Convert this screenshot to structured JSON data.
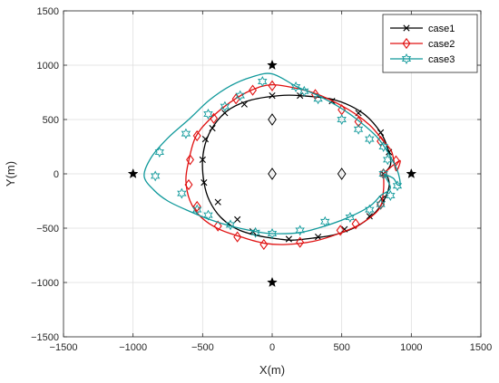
{
  "chart_data": {
    "type": "line",
    "xlabel": "X(m)",
    "ylabel": "Y(m)",
    "xlim": [
      -1500,
      1500
    ],
    "ylim": [
      -1500,
      1500
    ],
    "xticks": [
      -1500,
      -1000,
      -500,
      0,
      500,
      1000,
      1500
    ],
    "yticks": [
      -1500,
      -1000,
      -500,
      0,
      500,
      1000,
      1500
    ],
    "grid": true,
    "legend_position": "top-right",
    "landmarks": {
      "stars": [
        [
          0,
          1000
        ],
        [
          -1000,
          0
        ],
        [
          1000,
          0
        ],
        [
          0,
          -1000
        ]
      ],
      "diamonds": [
        [
          0,
          500
        ],
        [
          0,
          0
        ],
        [
          500,
          0
        ]
      ]
    },
    "series": [
      {
        "name": "case1",
        "color": "#000000",
        "marker": "x",
        "points": [
          [
            800,
            0
          ],
          [
            850,
            80
          ],
          [
            840,
            200
          ],
          [
            780,
            380
          ],
          [
            650,
            560
          ],
          [
            450,
            680
          ],
          [
            200,
            720
          ],
          [
            50,
            720
          ],
          [
            -150,
            680
          ],
          [
            -300,
            600
          ],
          [
            -400,
            480
          ],
          [
            -470,
            320
          ],
          [
            -500,
            130
          ],
          [
            -490,
            -80
          ],
          [
            -450,
            -250
          ],
          [
            -370,
            -400
          ],
          [
            -250,
            -510
          ],
          [
            -100,
            -570
          ],
          [
            50,
            -600
          ],
          [
            150,
            -610
          ],
          [
            300,
            -590
          ],
          [
            450,
            -560
          ],
          [
            600,
            -490
          ],
          [
            730,
            -370
          ],
          [
            800,
            -250
          ],
          [
            840,
            -120
          ],
          [
            830,
            -30
          ],
          [
            800,
            0
          ]
        ],
        "marker_points": [
          [
            840,
            200
          ],
          [
            780,
            380
          ],
          [
            620,
            560
          ],
          [
            430,
            670
          ],
          [
            200,
            720
          ],
          [
            0,
            720
          ],
          [
            -200,
            640
          ],
          [
            -340,
            560
          ],
          [
            -430,
            420
          ],
          [
            -480,
            320
          ],
          [
            -500,
            130
          ],
          [
            -490,
            -80
          ],
          [
            -390,
            -260
          ],
          [
            -250,
            -420
          ],
          [
            -140,
            -530
          ],
          [
            120,
            -600
          ],
          [
            330,
            -580
          ],
          [
            520,
            -510
          ],
          [
            700,
            -390
          ],
          [
            790,
            -230
          ],
          [
            800,
            0
          ]
        ]
      },
      {
        "name": "case2",
        "color": "#e01010",
        "marker": "diamond",
        "points": [
          [
            800,
            0
          ],
          [
            870,
            80
          ],
          [
            920,
            120
          ],
          [
            890,
            30
          ],
          [
            860,
            200
          ],
          [
            800,
            300
          ],
          [
            700,
            450
          ],
          [
            550,
            590
          ],
          [
            350,
            720
          ],
          [
            200,
            780
          ],
          [
            0,
            820
          ],
          [
            -150,
            770
          ],
          [
            -300,
            660
          ],
          [
            -450,
            500
          ],
          [
            -550,
            340
          ],
          [
            -600,
            120
          ],
          [
            -620,
            -60
          ],
          [
            -590,
            -250
          ],
          [
            -510,
            -400
          ],
          [
            -380,
            -510
          ],
          [
            -200,
            -590
          ],
          [
            -50,
            -640
          ],
          [
            100,
            -650
          ],
          [
            300,
            -620
          ],
          [
            500,
            -540
          ],
          [
            650,
            -450
          ],
          [
            770,
            -320
          ],
          [
            800,
            -150
          ],
          [
            800,
            0
          ]
        ],
        "marker_points": [
          [
            890,
            120
          ],
          [
            780,
            300
          ],
          [
            620,
            480
          ],
          [
            500,
            590
          ],
          [
            310,
            730
          ],
          [
            0,
            810
          ],
          [
            -140,
            770
          ],
          [
            -260,
            690
          ],
          [
            -420,
            510
          ],
          [
            -540,
            350
          ],
          [
            -590,
            130
          ],
          [
            -600,
            -100
          ],
          [
            -540,
            -300
          ],
          [
            -390,
            -480
          ],
          [
            -250,
            -580
          ],
          [
            -60,
            -650
          ],
          [
            200,
            -630
          ],
          [
            490,
            -520
          ],
          [
            600,
            -460
          ],
          [
            780,
            -280
          ],
          [
            800,
            0
          ]
        ]
      },
      {
        "name": "case3",
        "color": "#10999b",
        "marker": "hexagram",
        "points": [
          [
            800,
            0
          ],
          [
            870,
            -40
          ],
          [
            900,
            -100
          ],
          [
            920,
            -90
          ],
          [
            900,
            30
          ],
          [
            840,
            180
          ],
          [
            760,
            330
          ],
          [
            640,
            470
          ],
          [
            500,
            600
          ],
          [
            330,
            720
          ],
          [
            180,
            800
          ],
          [
            0,
            920
          ],
          [
            -150,
            890
          ],
          [
            -300,
            810
          ],
          [
            -450,
            680
          ],
          [
            -600,
            500
          ],
          [
            -750,
            330
          ],
          [
            -870,
            150
          ],
          [
            -920,
            -20
          ],
          [
            -850,
            -150
          ],
          [
            -750,
            -250
          ],
          [
            -620,
            -330
          ],
          [
            -450,
            -420
          ],
          [
            -300,
            -480
          ],
          [
            -120,
            -530
          ],
          [
            0,
            -550
          ],
          [
            200,
            -540
          ],
          [
            380,
            -480
          ],
          [
            550,
            -400
          ],
          [
            700,
            -300
          ],
          [
            780,
            -200
          ],
          [
            850,
            -130
          ],
          [
            800,
            0
          ]
        ],
        "marker_points": [
          [
            900,
            -110
          ],
          [
            850,
            -200
          ],
          [
            780,
            -280
          ],
          [
            700,
            -330
          ],
          [
            560,
            -400
          ],
          [
            380,
            -440
          ],
          [
            200,
            -520
          ],
          [
            0,
            -550
          ],
          [
            -120,
            -540
          ],
          [
            -300,
            -470
          ],
          [
            -460,
            -380
          ],
          [
            -540,
            -330
          ],
          [
            -650,
            -180
          ],
          [
            -840,
            -20
          ],
          [
            -810,
            200
          ],
          [
            -620,
            370
          ],
          [
            -460,
            550
          ],
          [
            -340,
            620
          ],
          [
            -230,
            720
          ],
          [
            -70,
            850
          ],
          [
            170,
            800
          ],
          [
            230,
            760
          ],
          [
            330,
            690
          ],
          [
            500,
            500
          ],
          [
            620,
            410
          ],
          [
            700,
            320
          ],
          [
            800,
            250
          ],
          [
            830,
            130
          ],
          [
            800,
            0
          ]
        ]
      }
    ]
  }
}
